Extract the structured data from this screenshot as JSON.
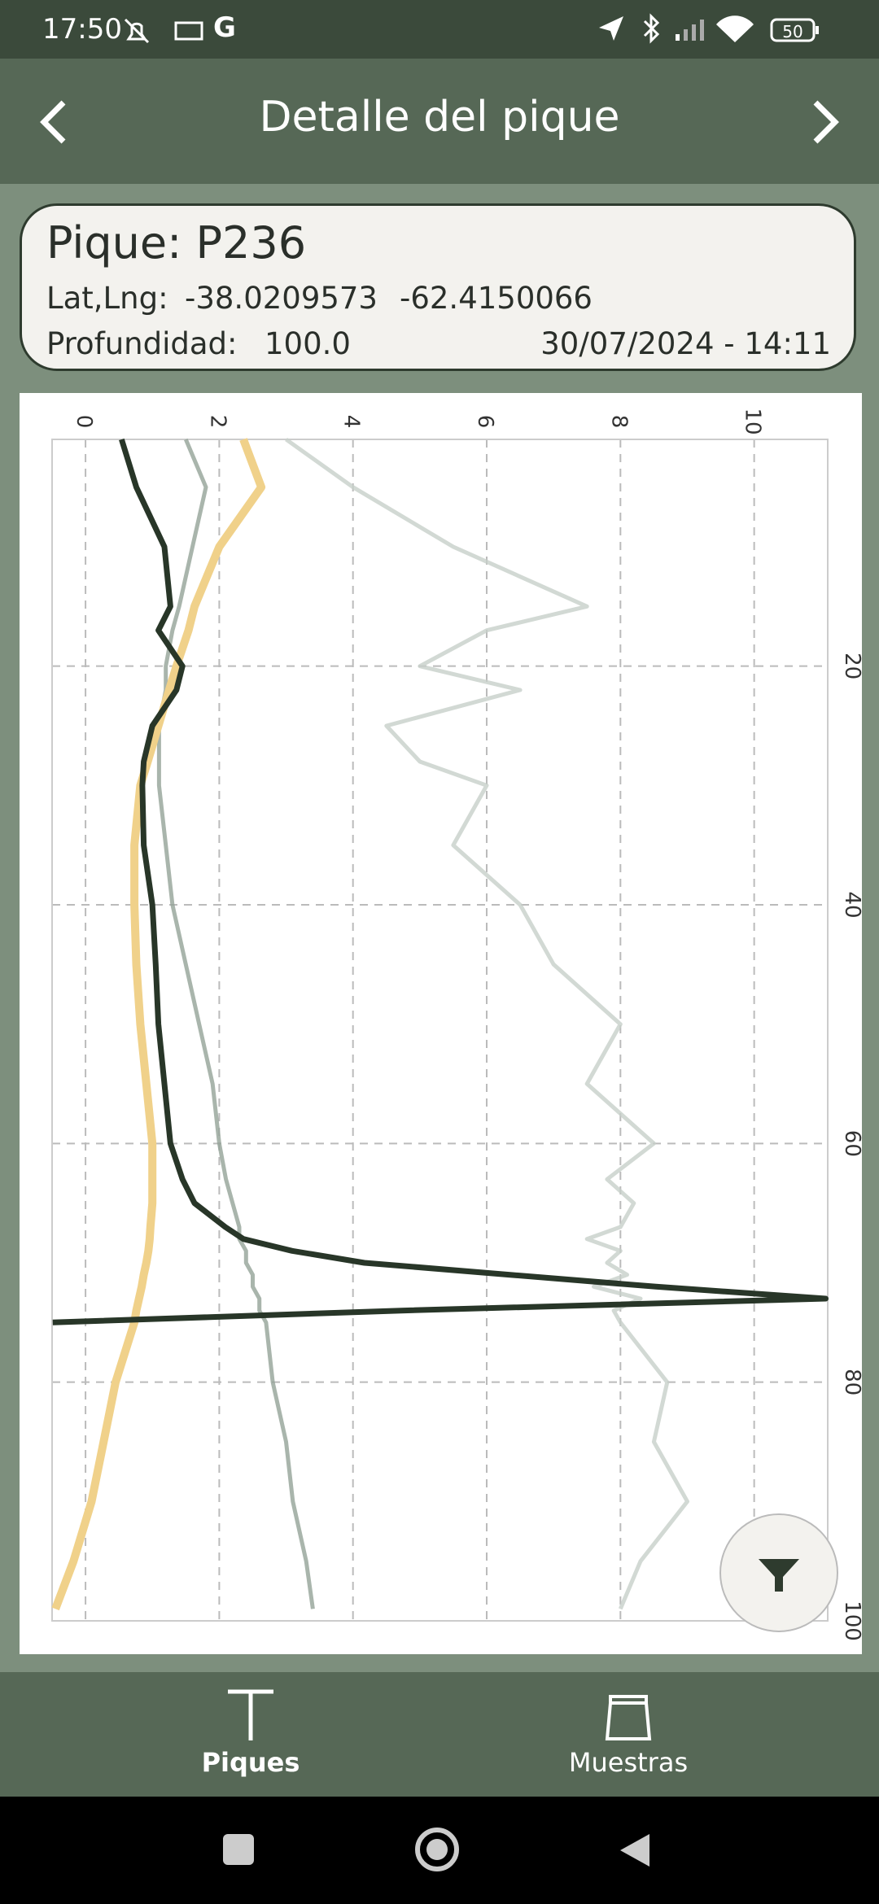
{
  "status_bar": {
    "time": "17:50",
    "carrier_icon": "G",
    "battery": "50"
  },
  "app_bar": {
    "title": "Detalle del pique"
  },
  "card": {
    "title": "Pique: P236",
    "latlng_label": "Lat,Lng:",
    "lat": "-38.0209573",
    "lng": "-62.4150066",
    "depth_label": "Profundidad:",
    "depth": "100.0",
    "datetime": "30/07/2024 - 14:11"
  },
  "chart_data": {
    "type": "line",
    "x": [
      1,
      5,
      10,
      15,
      17,
      20,
      22,
      25,
      28,
      30,
      35,
      40,
      45,
      50,
      55,
      60,
      63,
      65,
      67,
      68,
      69,
      70,
      71,
      72,
      73,
      74,
      75,
      80,
      85,
      90,
      95,
      99
    ],
    "xlim": [
      1,
      100
    ],
    "xticks": [
      20,
      40,
      60,
      80,
      100
    ],
    "ylim": [
      -0.5,
      11.1
    ],
    "yticks": [
      0,
      2,
      4,
      6,
      8,
      10
    ],
    "grid": true,
    "series": [
      {
        "color": "#c7cfc9",
        "values": [
          3.0,
          4.0,
          5.5,
          7.5,
          6.0,
          5.0,
          6.5,
          4.5,
          5.0,
          6.0,
          5.5,
          6.5,
          7.0,
          8.0,
          7.5,
          8.5,
          7.8,
          8.2,
          8.0,
          7.5,
          8.0,
          7.8,
          8.1,
          7.6,
          8.3,
          7.9,
          8.0,
          8.7,
          8.5,
          9.0,
          8.3,
          8.0
        ]
      },
      {
        "color": "#93a397",
        "values": [
          1.5,
          1.8,
          1.6,
          1.4,
          1.3,
          1.2,
          1.2,
          1.1,
          1.1,
          1.1,
          1.2,
          1.3,
          1.5,
          1.7,
          1.9,
          2.0,
          2.1,
          2.2,
          2.3,
          2.3,
          2.4,
          2.4,
          2.5,
          2.5,
          2.6,
          2.6,
          2.7,
          2.8,
          3.0,
          3.1,
          3.3,
          3.4
        ]
      },
      {
        "color": "#f0d18a",
        "values": [
          2.36,
          2.63,
          2.0,
          1.63,
          1.54,
          1.36,
          1.25,
          1.09,
          0.93,
          0.82,
          0.73,
          0.73,
          0.76,
          0.82,
          0.91,
          1.0,
          1.0,
          1.0,
          0.97,
          0.96,
          0.94,
          0.91,
          0.87,
          0.84,
          0.8,
          0.76,
          0.73,
          0.45,
          0.27,
          0.09,
          -0.18,
          -0.45
        ]
      },
      {
        "color": "#283628",
        "values": [
          0.54,
          0.76,
          1.18,
          1.27,
          1.09,
          1.45,
          1.36,
          1.0,
          0.87,
          0.85,
          0.87,
          1.0,
          1.05,
          1.09,
          1.18,
          1.27,
          1.45,
          1.63,
          2.09,
          2.36,
          3.09,
          4.17,
          6.35,
          8.53,
          11.07,
          4.72,
          -0.49,
          null,
          null,
          null,
          null,
          null
        ]
      }
    ]
  },
  "bottom_nav": {
    "items": [
      "Piques",
      "Muestras"
    ]
  }
}
